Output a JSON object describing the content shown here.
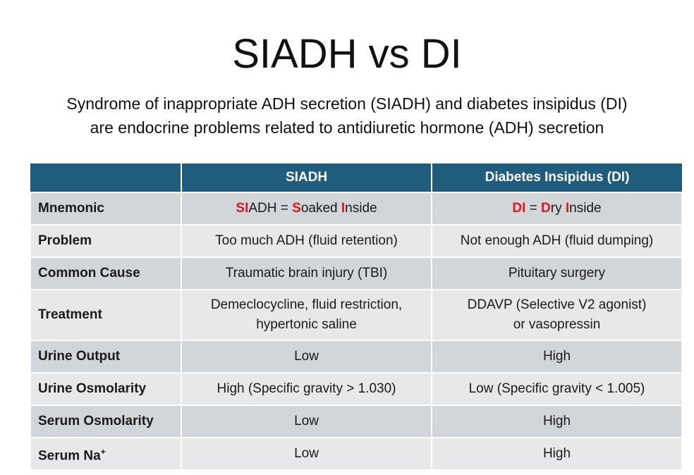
{
  "title": "SIADH vs DI",
  "subtitle_lines": [
    "Syndrome of inappropriate ADH secretion (SIADH) and diabetes insipidus (DI)",
    "are endocrine problems related to antidiuretic hormone (ADH) secretion"
  ],
  "colors": {
    "header": "#1f5c7e",
    "highlight": "#e0141b",
    "row_dark": "#d2d5d9",
    "row_light": "#e7e8ea"
  },
  "table": {
    "headers": [
      "",
      "SIADH",
      "Diabetes Insipidus (DI)"
    ],
    "mnemonic": {
      "label": "Mnemonic",
      "siadh": [
        {
          "t": "SI",
          "red": true
        },
        {
          "t": "ADH = ",
          "red": false
        },
        {
          "t": "S",
          "red": true
        },
        {
          "t": "oaked ",
          "red": false
        },
        {
          "t": "I",
          "red": true
        },
        {
          "t": "nside",
          "red": false
        }
      ],
      "di": [
        {
          "t": "DI",
          "red": true
        },
        {
          "t": " = ",
          "red": false
        },
        {
          "t": "D",
          "red": true
        },
        {
          "t": "ry ",
          "red": false
        },
        {
          "t": "I",
          "red": true
        },
        {
          "t": "nside",
          "red": false
        }
      ]
    },
    "rows": [
      {
        "label": "Problem",
        "siadh": "Too much ADH (fluid retention)",
        "di": "Not enough ADH (fluid dumping)"
      },
      {
        "label": "Common Cause",
        "siadh": "Traumatic brain injury (TBI)",
        "di": "Pituitary surgery"
      },
      {
        "label": "Treatment",
        "siadh": [
          "Demeclocycline, fluid restriction,",
          "hypertonic saline"
        ],
        "di": [
          "DDAVP (Selective V2 agonist)",
          "or vasopressin"
        ]
      },
      {
        "label": "Urine Output",
        "siadh": "Low",
        "di": "High"
      },
      {
        "label": "Urine Osmolarity",
        "siadh": "High (Specific gravity > 1.030)",
        "di": "Low (Specific gravity < 1.005)"
      },
      {
        "label": "Serum Osmolarity",
        "siadh": "Low",
        "di": "High"
      },
      {
        "label": "Serum Na",
        "label_sup": "+",
        "siadh": "Low",
        "di": "High"
      }
    ]
  }
}
